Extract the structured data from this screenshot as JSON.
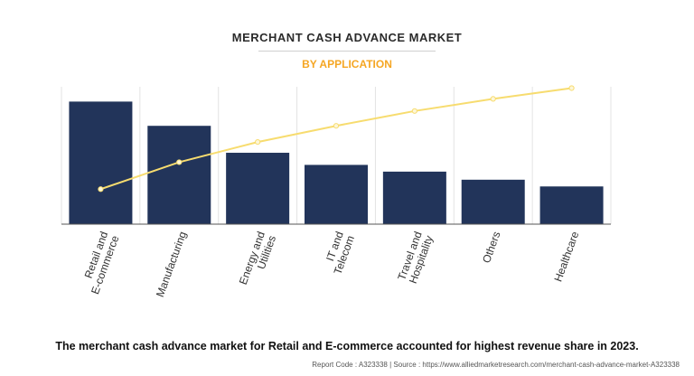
{
  "chart_data": {
    "type": "bar",
    "title": "MERCHANT CASH ADVANCE MARKET",
    "subtitle": "BY APPLICATION",
    "categories": [
      [
        "Retail and",
        "E-commerce"
      ],
      [
        "Manufacturing"
      ],
      [
        "Energy and",
        "Utilities"
      ],
      [
        "IT and",
        "Telecom"
      ],
      [
        "Travel and",
        "Hospitality"
      ],
      [
        "Others"
      ],
      [
        "Healthcare"
      ]
    ],
    "series": [
      {
        "type": "bar",
        "values": [
          91,
          73,
          53,
          44,
          39,
          33,
          28
        ]
      },
      {
        "type": "line",
        "values": [
          26,
          46,
          61,
          73,
          84,
          93,
          101
        ]
      }
    ],
    "ylim": [
      0,
      102
    ],
    "grid": true,
    "colors": {
      "bar": "#22345a",
      "line": "#f7dc6f",
      "marker": "#fdf6d8",
      "accent": "#f5a623"
    }
  },
  "caption": "The merchant cash advance market for Retail and E-commerce accounted for highest revenue share in 2023.",
  "footer": "Report Code : A323338  |  Source : https://www.alliedmarketresearch.com/merchant-cash-advance-market-A323338"
}
